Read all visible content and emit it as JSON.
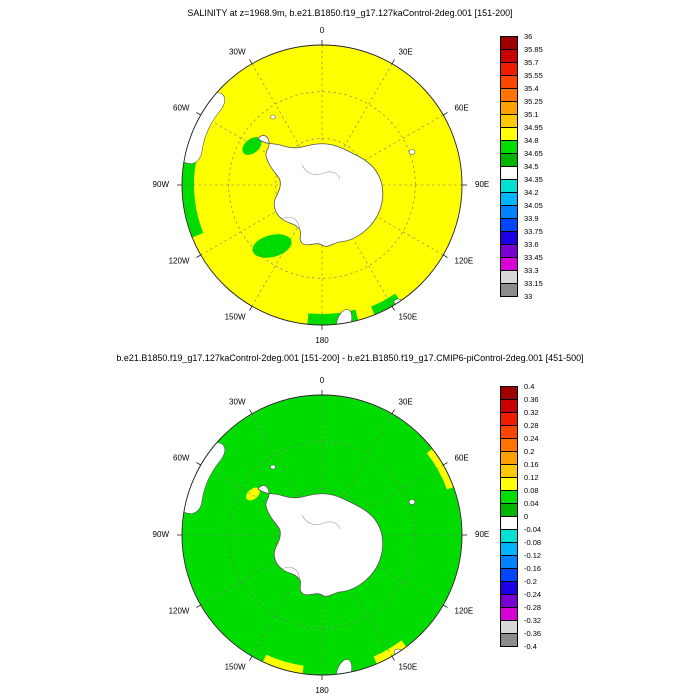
{
  "page_background": "#ffffff",
  "lon_labels": [
    {
      "label": "0",
      "deg": 0
    },
    {
      "label": "30E",
      "deg": 30
    },
    {
      "label": "60E",
      "deg": 60
    },
    {
      "label": "90E",
      "deg": 90
    },
    {
      "label": "120E",
      "deg": 120
    },
    {
      "label": "150E",
      "deg": 150
    },
    {
      "label": "180",
      "deg": 180
    },
    {
      "label": "150W",
      "deg": 210
    },
    {
      "label": "120W",
      "deg": 240
    },
    {
      "label": "90W",
      "deg": 270
    },
    {
      "label": "60W",
      "deg": 300
    },
    {
      "label": "30W",
      "deg": 330
    }
  ],
  "panels": [
    {
      "title": "SALINITY at z=1968.9m, b.e21.B1850.f19_g17.127kaControl-2deg.001 [151-200]",
      "map": {
        "ocean_color": "#ffff00",
        "patch_color": "#00dc00",
        "land_color": "#ffffff",
        "coast_color": "#555555"
      },
      "colorbar": {
        "tick_labels": [
          "36",
          "35.85",
          "35.7",
          "35.55",
          "35.4",
          "35.25",
          "35.1",
          "34.95",
          "34.8",
          "34.65",
          "34.5",
          "34.35",
          "34.2",
          "34.05",
          "33.9",
          "33.75",
          "33.6",
          "33.45",
          "33.3",
          "33.15",
          "33"
        ],
        "colors": [
          "#9d0000",
          "#c80000",
          "#ef1c00",
          "#ff4600",
          "#ff7300",
          "#ffa000",
          "#ffc800",
          "#ffff00",
          "#00dc00",
          "#00b400",
          "#ffffff",
          "#00e1d2",
          "#00b4ff",
          "#0082ff",
          "#0046ff",
          "#1e00e6",
          "#7800d2",
          "#d700d7",
          "#d8d8d8",
          "#8c8c8c"
        ]
      }
    },
    {
      "title": "b.e21.B1850.f19_g17.127kaControl-2deg.001 [151-200] - b.e21.B1850.f19_g17.CMIP6-piControl-2deg.001 [451-500]",
      "map": {
        "ocean_color": "#00dc00",
        "patch_color": "#ffff00",
        "land_color": "#ffffff",
        "coast_color": "#555555"
      },
      "colorbar": {
        "tick_labels": [
          "0.4",
          "0.36",
          "0.32",
          "0.28",
          "0.24",
          "0.2",
          "0.16",
          "0.12",
          "0.08",
          "0.04",
          "0",
          "-0.04",
          "-0.08",
          "-0.12",
          "-0.16",
          "-0.2",
          "-0.24",
          "-0.28",
          "-0.32",
          "-0.36",
          "-0.4"
        ],
        "colors": [
          "#9d0000",
          "#c80000",
          "#ef1c00",
          "#ff4600",
          "#ff7300",
          "#ffa000",
          "#ffc800",
          "#ffff00",
          "#00dc00",
          "#00b400",
          "#ffffff",
          "#00e1d2",
          "#00b4ff",
          "#0082ff",
          "#0046ff",
          "#1e00e6",
          "#7800d2",
          "#d700d7",
          "#d8d8d8",
          "#8c8c8c"
        ]
      }
    }
  ],
  "chart_data": [
    {
      "type": "heatmap",
      "title": "SALINITY at z=1968.9m, b.e21.B1850.f19_g17.127kaControl-2deg.001 [151-200]",
      "variable": "SALINITY",
      "depth": "z=1968.9m",
      "dataset": "b.e21.B1850.f19_g17.127kaControl-2deg.001",
      "time_range": "[151-200]",
      "projection": "south polar stereographic",
      "lon_tick_labels": [
        "0",
        "30E",
        "60E",
        "90E",
        "120E",
        "150E",
        "180",
        "150W",
        "120W",
        "90W",
        "60W",
        "30W"
      ],
      "lat_gridlines": "unlabeled dashed circles",
      "contour_levels": [
        33,
        33.15,
        33.3,
        33.45,
        33.6,
        33.75,
        33.9,
        34.05,
        34.2,
        34.35,
        34.5,
        34.65,
        34.8,
        34.95,
        35.1,
        35.25,
        35.4,
        35.55,
        35.7,
        35.85,
        36
      ],
      "palette_low_to_high": [
        "#8c8c8c",
        "#d8d8d8",
        "#d700d7",
        "#7800d2",
        "#1e00e6",
        "#0046ff",
        "#0082ff",
        "#00b4ff",
        "#00e1d2",
        "#ffffff",
        "#00b400",
        "#00dc00",
        "#ffff00",
        "#ffc800",
        "#ffa000",
        "#ff7300",
        "#ff4600",
        "#ef1c00",
        "#c80000",
        "#9d0000"
      ],
      "legend_position": "right",
      "field_summary": {
        "dominant_value_range": [
          34.8,
          34.95
        ],
        "coastal_patch_value_range": [
          34.65,
          34.8
        ],
        "land_mask_color": "#ffffff"
      }
    },
    {
      "type": "heatmap",
      "title": "b.e21.B1850.f19_g17.127kaControl-2deg.001 [151-200] - b.e21.B1850.f19_g17.CMIP6-piControl-2deg.001 [451-500]",
      "variable": "SALINITY difference",
      "dataset_a": "b.e21.B1850.f19_g17.127kaControl-2deg.001 [151-200]",
      "dataset_b": "b.e21.B1850.f19_g17.CMIP6-piControl-2deg.001 [451-500]",
      "projection": "south polar stereographic",
      "lon_tick_labels": [
        "0",
        "30E",
        "60E",
        "90E",
        "120E",
        "150E",
        "180",
        "150W",
        "120W",
        "90W",
        "60W",
        "30W"
      ],
      "lat_gridlines": "unlabeled dashed circles",
      "contour_levels": [
        -0.4,
        -0.36,
        -0.32,
        -0.28,
        -0.24,
        -0.2,
        -0.16,
        -0.12,
        -0.08,
        -0.04,
        0,
        0.04,
        0.08,
        0.12,
        0.16,
        0.2,
        0.24,
        0.28,
        0.32,
        0.36,
        0.4
      ],
      "palette_low_to_high": [
        "#8c8c8c",
        "#d8d8d8",
        "#d700d7",
        "#7800d2",
        "#1e00e6",
        "#0046ff",
        "#0082ff",
        "#00b4ff",
        "#00e1d2",
        "#ffffff",
        "#00b400",
        "#00dc00",
        "#ffff00",
        "#ffc800",
        "#ffa000",
        "#ff7300",
        "#ff4600",
        "#ef1c00",
        "#c80000",
        "#9d0000"
      ],
      "legend_position": "right",
      "field_summary": {
        "dominant_value_range": [
          0.04,
          0.08
        ],
        "coastal_patch_value_range": [
          0.08,
          0.12
        ],
        "land_mask_color": "#ffffff"
      }
    }
  ]
}
